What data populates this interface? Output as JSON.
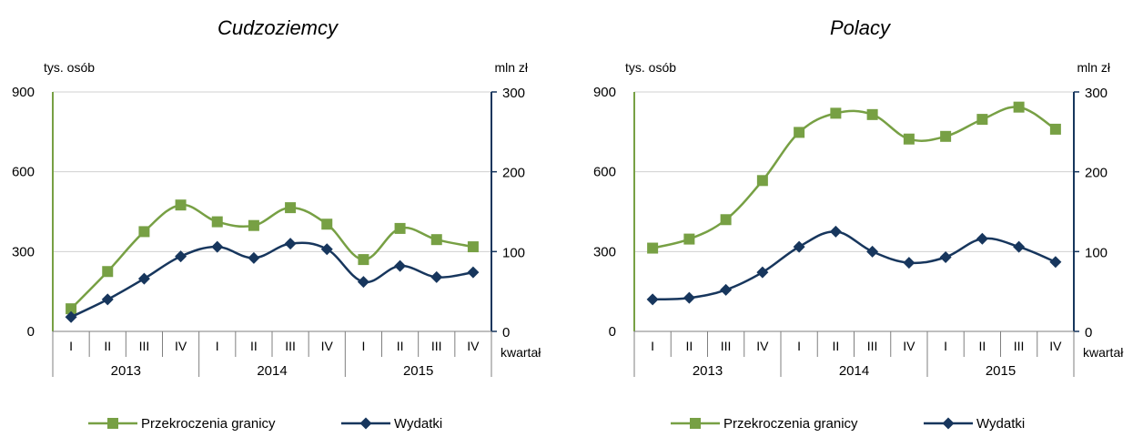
{
  "chart_data": [
    {
      "type": "line",
      "title": "Cudzoziemcy",
      "ylabel": "tys. osób",
      "y2label": "mln zł",
      "xlabel": "kwartał",
      "categories": [
        "I",
        "II",
        "III",
        "IV",
        "I",
        "II",
        "III",
        "IV",
        "I",
        "II",
        "III",
        "IV"
      ],
      "years": [
        "2013",
        "2014",
        "2015"
      ],
      "ylim": [
        0,
        900
      ],
      "y2lim": [
        0,
        300
      ],
      "yticks": [
        "0",
        "300",
        "600",
        "900"
      ],
      "y2ticks": [
        "0",
        "100",
        "200",
        "300"
      ],
      "grid": true,
      "legend_position": "bottom",
      "series": [
        {
          "name": "Przekroczenia granicy",
          "axis": "left",
          "color": "#77a044",
          "marker": "square",
          "values": [
            85,
            225,
            375,
            475,
            412,
            398,
            465,
            403,
            270,
            387,
            345,
            318
          ]
        },
        {
          "name": "Wydatki",
          "axis": "right",
          "color": "#17365d",
          "marker": "diamond",
          "values": [
            18,
            40,
            66,
            94,
            106,
            92,
            110,
            103,
            62,
            82,
            68,
            74
          ]
        }
      ]
    },
    {
      "type": "line",
      "title": "Polacy",
      "ylabel": "tys. osób",
      "y2label": "mln zł",
      "xlabel": "kwartał",
      "categories": [
        "I",
        "II",
        "III",
        "IV",
        "I",
        "II",
        "III",
        "IV",
        "I",
        "II",
        "III",
        "IV"
      ],
      "years": [
        "2013",
        "2014",
        "2015"
      ],
      "ylim": [
        0,
        900
      ],
      "y2lim": [
        0,
        300
      ],
      "yticks": [
        "0",
        "300",
        "600",
        "900"
      ],
      "y2ticks": [
        "0",
        "100",
        "200",
        "300"
      ],
      "grid": true,
      "legend_position": "bottom",
      "series": [
        {
          "name": "Przekroczenia granicy",
          "axis": "left",
          "color": "#77a044",
          "marker": "square",
          "values": [
            313,
            347,
            420,
            567,
            748,
            820,
            815,
            723,
            733,
            797,
            843,
            760
          ]
        },
        {
          "name": "Wydatki",
          "axis": "right",
          "color": "#17365d",
          "marker": "diamond",
          "values": [
            40,
            42,
            52,
            74,
            106,
            125,
            100,
            86,
            93,
            116,
            106,
            87
          ]
        }
      ]
    }
  ]
}
